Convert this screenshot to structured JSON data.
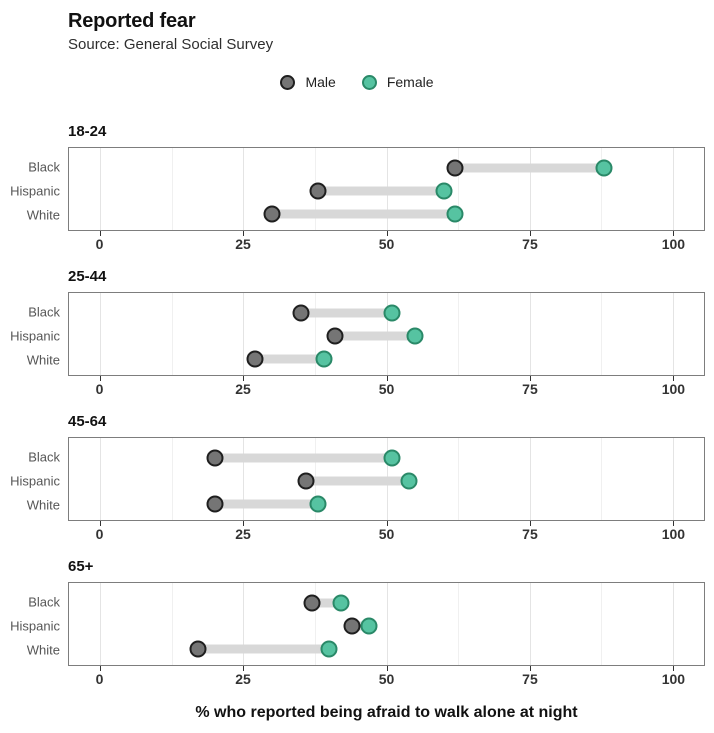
{
  "header": {
    "title": "Reported fear",
    "subtitle": "Source: General Social Survey"
  },
  "legend": {
    "male_label": "Male",
    "female_label": "Female"
  },
  "colors": {
    "male_fill": "#757575",
    "male_stroke": "#1f1f1f",
    "female_fill": "#56c3a1",
    "female_stroke": "#2a8968",
    "bar": "#d8d8d8",
    "panel_border": "#7d7d7d",
    "grid_major": "#e4e4e4",
    "grid_minor": "#f0f0f0",
    "tick": "#333333"
  },
  "chart_data": {
    "type": "scatter",
    "subtype": "dumbbell",
    "title": "Reported fear",
    "subtitle": "Source: General Social Survey",
    "xlabel": "% who reported being afraid to walk alone at night",
    "x_ticks": [
      0,
      25,
      50,
      75,
      100
    ],
    "x_minor_ticks": [
      12.5,
      37.5,
      62.5,
      87.5
    ],
    "xlim": [
      -5.5,
      105.5
    ],
    "grid": true,
    "legend_position": "top-center",
    "series": [
      "Male",
      "Female"
    ],
    "panels": [
      {
        "age_group": "18-24",
        "rows": [
          {
            "group": "Black",
            "male": 62,
            "female": 88
          },
          {
            "group": "Hispanic",
            "male": 38,
            "female": 60
          },
          {
            "group": "White",
            "male": 30,
            "female": 62
          }
        ]
      },
      {
        "age_group": "25-44",
        "rows": [
          {
            "group": "Black",
            "male": 35,
            "female": 51
          },
          {
            "group": "Hispanic",
            "male": 41,
            "female": 55
          },
          {
            "group": "White",
            "male": 27,
            "female": 39
          }
        ]
      },
      {
        "age_group": "45-64",
        "rows": [
          {
            "group": "Black",
            "male": 20,
            "female": 51
          },
          {
            "group": "Hispanic",
            "male": 36,
            "female": 54
          },
          {
            "group": "White",
            "male": 20,
            "female": 38
          }
        ]
      },
      {
        "age_group": "65+",
        "rows": [
          {
            "group": "Black",
            "male": 37,
            "female": 42
          },
          {
            "group": "Hispanic",
            "male": 44,
            "female": 47
          },
          {
            "group": "White",
            "male": 17,
            "female": 40
          }
        ]
      }
    ]
  }
}
